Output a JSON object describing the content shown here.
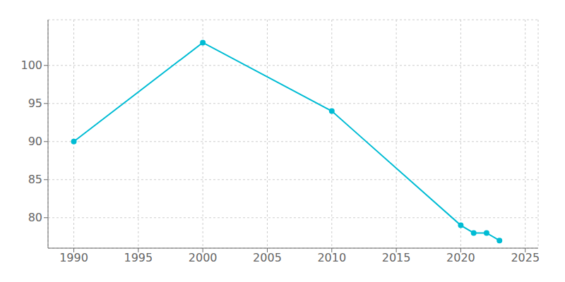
{
  "chart_data": {
    "type": "line",
    "x": [
      1990,
      2000,
      2010,
      2020,
      2021,
      2022,
      2023
    ],
    "values": [
      90,
      103,
      94,
      79,
      78,
      78,
      77
    ],
    "color": "#00bcd4",
    "marker": "circle",
    "xlim": [
      1988,
      2026
    ],
    "xticks": [
      1990,
      1995,
      2000,
      2005,
      2010,
      2015,
      2020,
      2025
    ],
    "ylim": [
      76,
      106
    ],
    "yticks": [
      80,
      85,
      90,
      95,
      100
    ],
    "grid": true
  }
}
